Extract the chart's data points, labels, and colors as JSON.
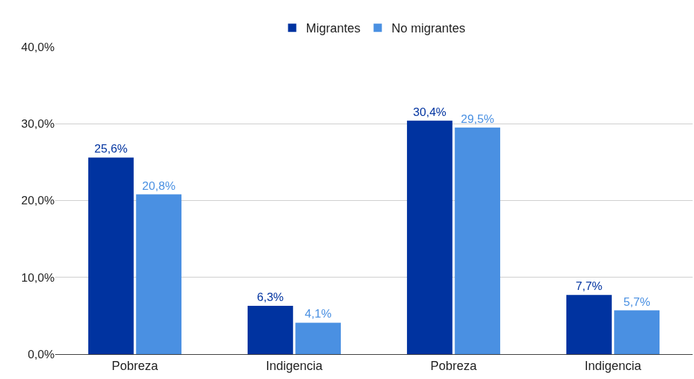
{
  "chart_data": {
    "type": "bar",
    "categories": [
      "Pobreza",
      "Indigencia",
      "Pobreza",
      "Indigencia"
    ],
    "series": [
      {
        "name": "Migrantes",
        "color": "#0033a0",
        "values": [
          25.6,
          6.3,
          30.4,
          7.7
        ],
        "value_labels": [
          "25,6%",
          "6,3%",
          "30,4%",
          "7,7%"
        ]
      },
      {
        "name": "No migrantes",
        "color": "#4a90e2",
        "values": [
          20.8,
          4.1,
          29.5,
          5.7
        ],
        "value_labels": [
          "20,8%",
          "4,1%",
          "29,5%",
          "5,7%"
        ]
      }
    ],
    "ylim": [
      0,
      40
    ],
    "yticks": [
      {
        "value": 0,
        "label": "0,0%"
      },
      {
        "value": 10,
        "label": "10,0%"
      },
      {
        "value": 20,
        "label": "20,0%"
      },
      {
        "value": 30,
        "label": "30,0%"
      },
      {
        "value": 40,
        "label": "40,0%"
      }
    ],
    "grid": "y",
    "legend": "top"
  }
}
